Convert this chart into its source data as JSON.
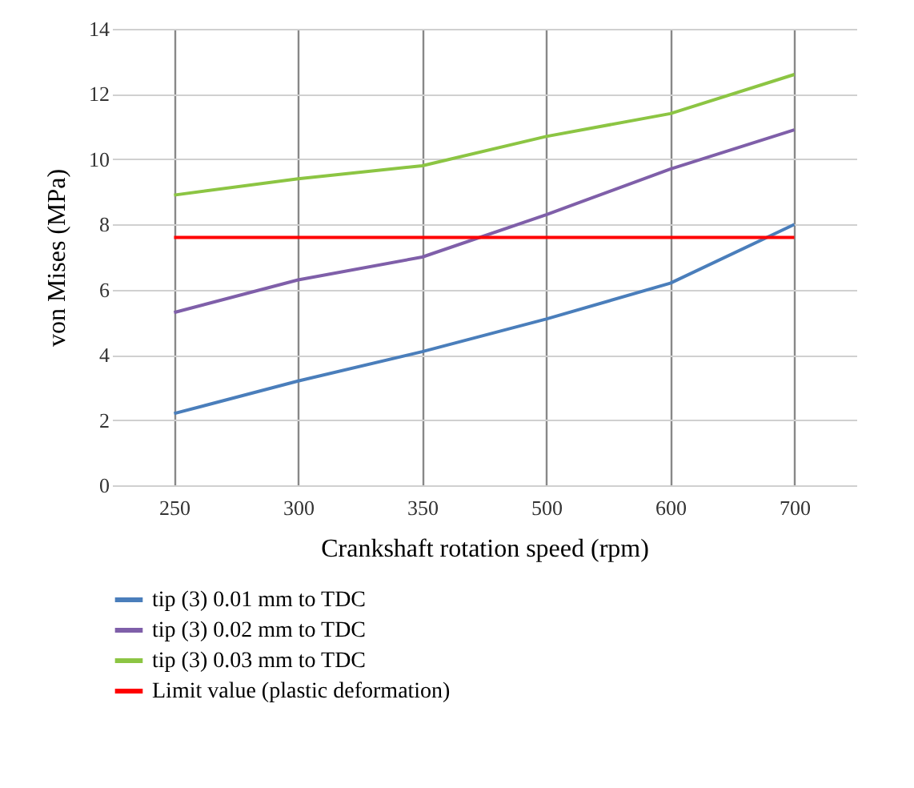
{
  "chart_data": {
    "type": "line",
    "xlabel": "Crankshaft rotation speed (rpm)",
    "ylabel": "von Mises (MPa)",
    "categories": [
      "250",
      "300",
      "350",
      "500",
      "600",
      "700"
    ],
    "series": [
      {
        "name": "tip (3) 0.01 mm to TDC",
        "color": "#4a7ebb",
        "values": [
          2.2,
          3.2,
          4.1,
          5.1,
          6.2,
          8.0
        ]
      },
      {
        "name": "tip (3) 0.02 mm to TDC",
        "color": "#7f5fa9",
        "values": [
          5.3,
          6.3,
          7.0,
          8.3,
          9.7,
          10.9
        ]
      },
      {
        "name": "tip (3) 0.03 mm to TDC",
        "color": "#8cc543",
        "values": [
          8.9,
          9.4,
          9.8,
          10.7,
          11.4,
          12.6
        ]
      },
      {
        "name": "Limit value (plastic deformation)",
        "color": "#ff0000",
        "values": [
          7.6,
          7.6,
          7.6,
          7.6,
          7.6,
          7.6
        ]
      }
    ],
    "ylim": [
      0,
      14
    ],
    "yticks": [
      0,
      2,
      4,
      6,
      8,
      10,
      12,
      14
    ],
    "grid": true,
    "legend": "bottom",
    "marker": "none",
    "line_style": "solid"
  }
}
